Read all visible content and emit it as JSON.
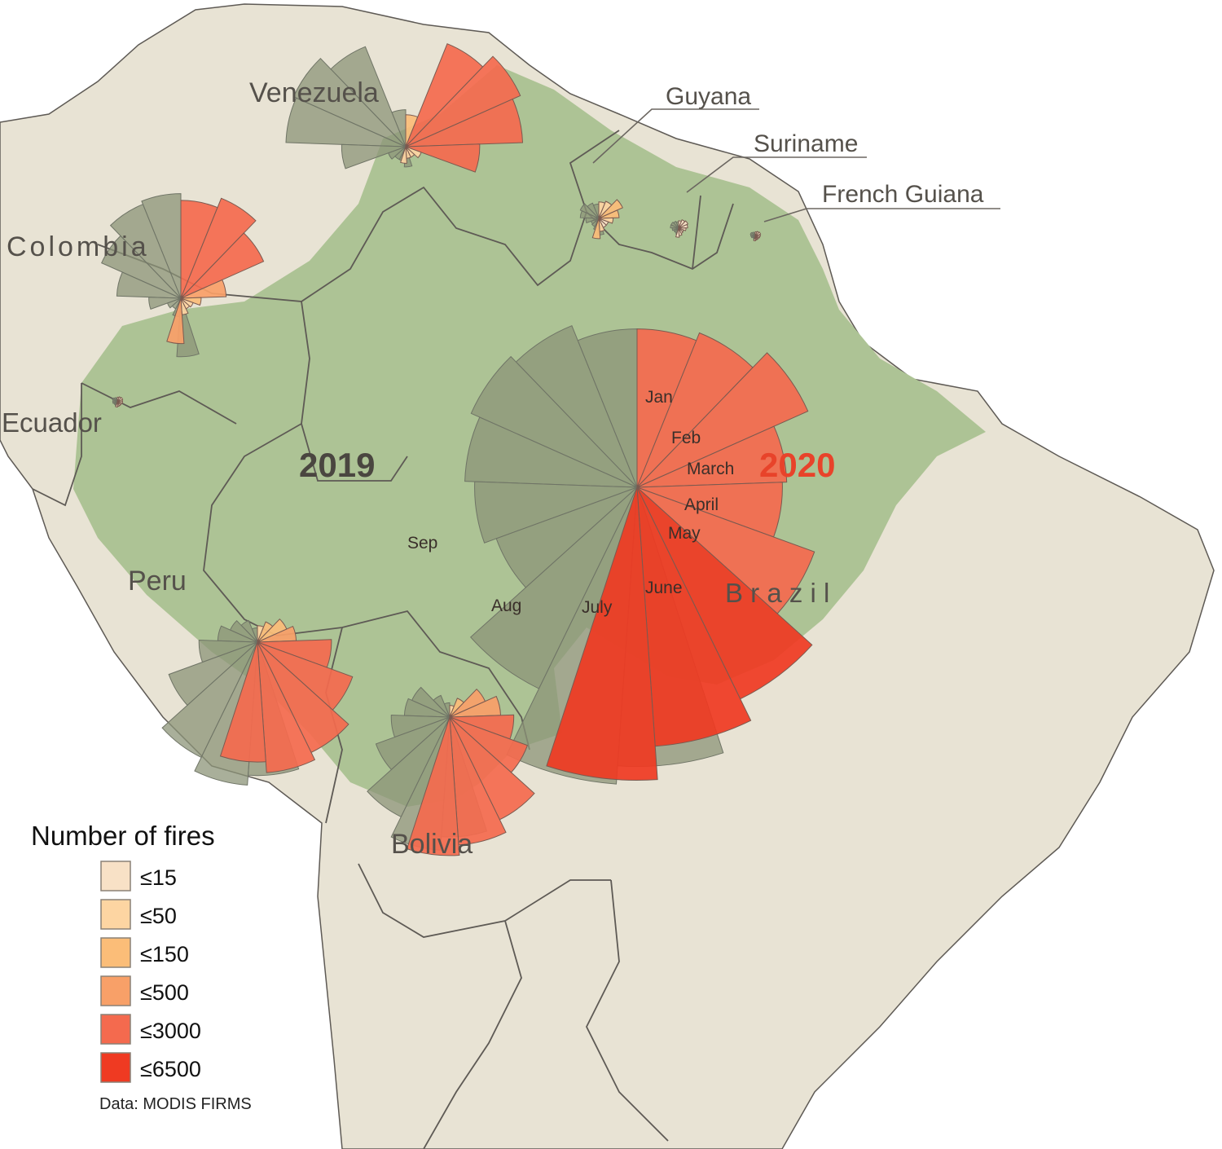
{
  "map": {
    "countries": [
      {
        "id": "venezuela",
        "name": "Venezuela"
      },
      {
        "id": "colombia",
        "name": "Colombia"
      },
      {
        "id": "ecuador",
        "name": "Ecuador"
      },
      {
        "id": "peru",
        "name": "Peru"
      },
      {
        "id": "bolivia",
        "name": "Bolivia"
      },
      {
        "id": "brazil",
        "name": "B r a z i l"
      },
      {
        "id": "guyana",
        "name": "Guyana"
      },
      {
        "id": "suriname",
        "name": "Suriname"
      },
      {
        "id": "french_guiana",
        "name": "French Guiana"
      }
    ],
    "colors": {
      "land": "#e8e3d4",
      "amazon_region": "#adc395",
      "border": "#5e5a55",
      "year_2019": "#8c9478",
      "year_2020_label": "#e8432a",
      "year_2019_label": "#4a4640"
    }
  },
  "years": {
    "y2019": "2019",
    "y2020": "2020"
  },
  "months": {
    "jan": "Jan",
    "feb": "Feb",
    "mar": "March",
    "apr": "April",
    "may": "May",
    "jun": "June",
    "jul": "July",
    "aug": "Aug",
    "sep": "Sep"
  },
  "legend": {
    "title": "Number of fires",
    "items": [
      {
        "label": "≤15",
        "color": "#f8e1c6"
      },
      {
        "label": "≤50",
        "color": "#fdd5a2"
      },
      {
        "label": "≤150",
        "color": "#fbbd78"
      },
      {
        "label": "≤500",
        "color": "#f8a068"
      },
      {
        "label": "≤3000",
        "color": "#f46a4e"
      },
      {
        "label": "≤6500",
        "color": "#ef3a22"
      }
    ]
  },
  "source": "Data: MODIS FIRMS",
  "chart_data": {
    "type": "polar-area",
    "month_order": [
      "Jan",
      "Feb",
      "March",
      "April",
      "May",
      "June",
      "July",
      "Aug",
      "Sep"
    ],
    "note_direction": "2020 wedges sweep clockwise from north; 2019 wedges (grey) drawn behind",
    "charts": [
      {
        "country": "Brazil",
        "values_2020": [
          1900,
          2100,
          2650,
          1700,
          1600,
          2700,
          4200,
          5100,
          6500
        ],
        "values_2019": [
          1900,
          2300,
          2500,
          2250,
          2000,
          1700,
          3800,
          6700,
          5900
        ]
      },
      {
        "country": "Bolivia",
        "values_2020": [
          20,
          60,
          220,
          380,
          600,
          1000,
          1900,
          2400,
          2800
        ],
        "values_2019": [
          30,
          80,
          250,
          300,
          500,
          900,
          1800,
          2600,
          2100
        ]
      },
      {
        "country": "Peru",
        "values_2020": [
          40,
          70,
          150,
          220,
          800,
          1500,
          2200,
          2500,
          2100
        ],
        "values_2019": [
          30,
          80,
          130,
          230,
          500,
          1300,
          2400,
          3000,
          2600
        ]
      },
      {
        "country": "Venezuela",
        "values_2020": [
          150,
          1800,
          2300,
          2000,
          800,
          40,
          20,
          20,
          40
        ],
        "values_2019": [
          200,
          1700,
          2200,
          2100,
          600,
          50,
          30,
          30,
          60
        ]
      },
      {
        "country": "Colombia",
        "values_2020": [
          1400,
          1700,
          1200,
          300,
          60,
          25,
          20,
          40,
          300
        ],
        "values_2019": [
          1600,
          1500,
          1100,
          600,
          150,
          30,
          20,
          50,
          500
        ]
      },
      {
        "country": "Guyana",
        "values_2020": [
          40,
          50,
          100,
          60,
          30,
          15,
          15,
          25,
          60
        ],
        "values_2019": [
          30,
          40,
          60,
          50,
          25,
          10,
          12,
          20,
          40
        ]
      },
      {
        "country": "Suriname",
        "values_2020": [
          8,
          12,
          15,
          12,
          8,
          4,
          5,
          8,
          12
        ],
        "values_2019": [
          6,
          8,
          10,
          10,
          6,
          4,
          4,
          6,
          8
        ]
      },
      {
        "country": "French Guiana",
        "values_2020": [
          3,
          4,
          5,
          4,
          3,
          2,
          2,
          2,
          3
        ],
        "values_2019": [
          2,
          3,
          4,
          3,
          2,
          1,
          1,
          2,
          2
        ]
      },
      {
        "country": "Ecuador",
        "values_2020": [
          3,
          4,
          5,
          4,
          4,
          3,
          3,
          3,
          4
        ],
        "values_2019": [
          2,
          3,
          4,
          3,
          3,
          2,
          2,
          3,
          3
        ]
      }
    ]
  }
}
